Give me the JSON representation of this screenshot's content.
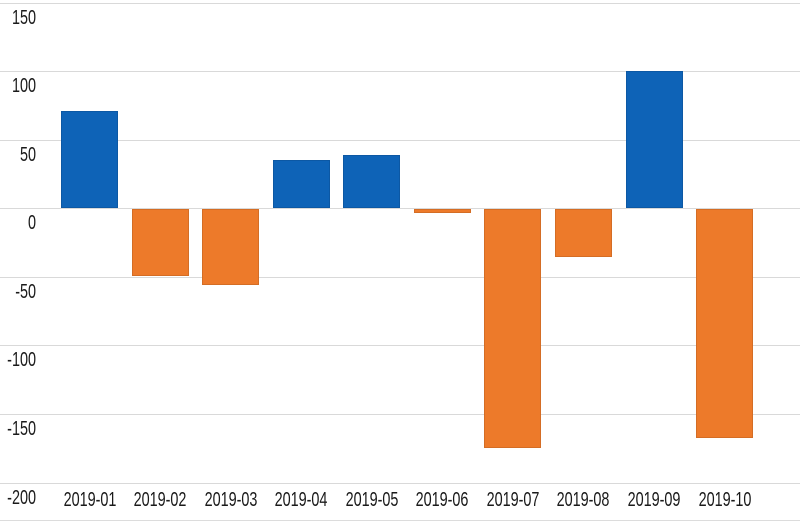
{
  "chart_data": {
    "type": "bar",
    "title": "",
    "xlabel": "",
    "ylabel": "",
    "categories": [
      "2019-01",
      "2019-02",
      "2019-03",
      "2019-04",
      "2019-05",
      "2019-06",
      "2019-07",
      "2019-08",
      "2019-09",
      "2019-10"
    ],
    "values": [
      71,
      -49,
      -55,
      35,
      39,
      -3,
      -174,
      -35,
      100,
      -167
    ],
    "ylim": [
      -200,
      150
    ],
    "yticks": [
      150,
      100,
      50,
      0,
      -50,
      -100,
      -150,
      -200
    ],
    "grid": true,
    "legend": false,
    "colors": {
      "positive": "#0e63b7",
      "negative": "#ed7a2a",
      "gridline": "#d9d9d9",
      "text": "#1a1a1a",
      "background": "#ffffff"
    }
  }
}
